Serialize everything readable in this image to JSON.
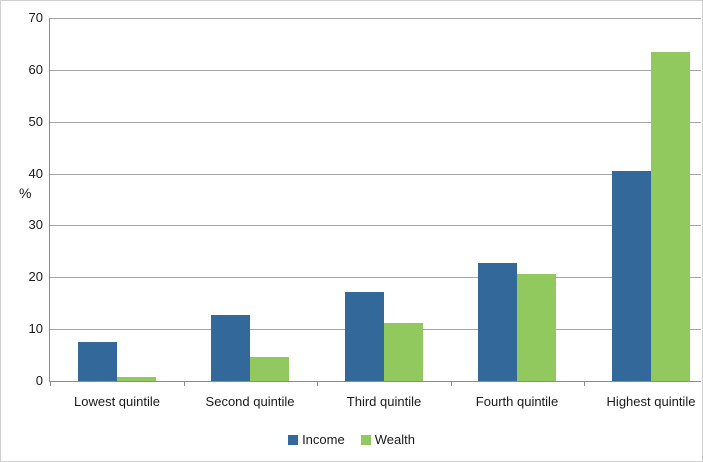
{
  "chart_data": {
    "type": "bar",
    "title": "",
    "categories": [
      "Lowest quintile",
      "Second quintile",
      "Third quintile",
      "Fourth quintile",
      "Highest quintile"
    ],
    "series": [
      {
        "name": "Income",
        "color": "#33689B",
        "values": [
          7.6,
          12.8,
          17.2,
          22.8,
          40.4
        ]
      },
      {
        "name": "Wealth",
        "color": "#92C95E",
        "values": [
          0.8,
          4.6,
          11.2,
          20.6,
          63.5
        ]
      }
    ],
    "xlabel": "",
    "ylabel": "%",
    "ylim": [
      0,
      70
    ],
    "ytick_step": 10,
    "yticks": [
      0,
      10,
      20,
      30,
      40,
      50,
      60,
      70
    ],
    "grid": true,
    "legend_position": "bottom"
  },
  "colors": {
    "bar_income": "#33689B",
    "bar_wealth": "#92C95E",
    "gridline": "#A6A6A6",
    "axis": "#8C8C8C",
    "text": "#1A1A1A",
    "background": "#FFFFFF",
    "frame_border": "#CFCFCF"
  }
}
